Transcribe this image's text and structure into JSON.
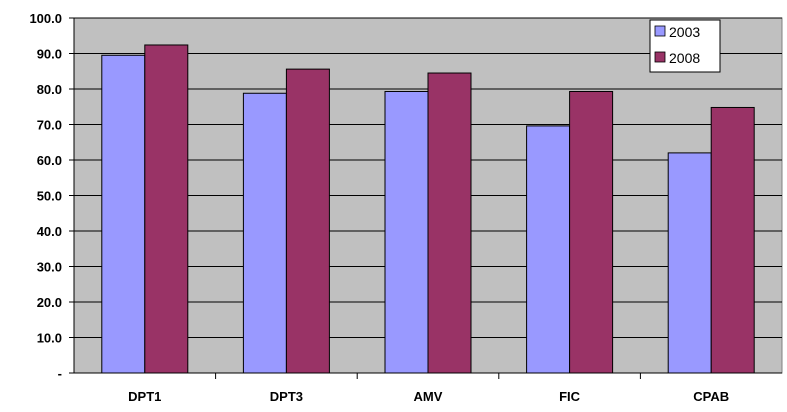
{
  "chart_data": {
    "type": "bar",
    "categories": [
      "DPT1",
      "DPT3",
      "AMV",
      "FIC",
      "CPAB"
    ],
    "series": [
      {
        "name": "2003",
        "values": [
          89.5,
          78.8,
          79.3,
          69.6,
          62.0
        ],
        "color": "#9999ff"
      },
      {
        "name": "2008",
        "values": [
          92.4,
          85.6,
          84.5,
          79.3,
          74.8
        ],
        "color": "#993366"
      }
    ],
    "y_ticks": [
      "-",
      "10.0",
      "20.0",
      "30.0",
      "40.0",
      "50.0",
      "60.0",
      "70.0",
      "80.0",
      "90.0",
      "100.0"
    ],
    "ylim": [
      0,
      100
    ],
    "grid": true,
    "legend_position": "top-right",
    "plot_background": "#c0c0c0"
  }
}
